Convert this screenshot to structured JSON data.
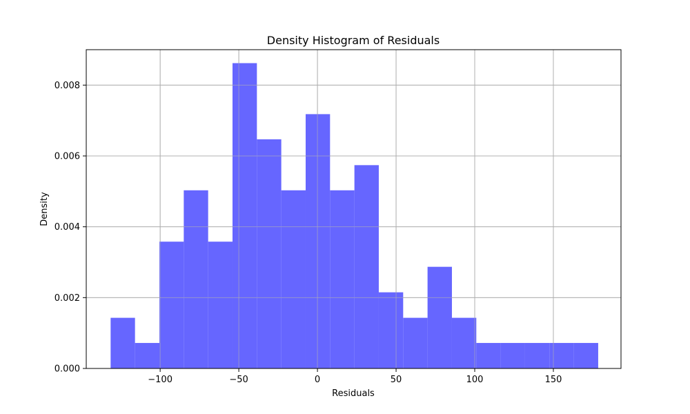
{
  "chart_data": {
    "type": "bar",
    "title": "Density Histogram of Residuals",
    "xlabel": "Residuals",
    "ylabel": "Density",
    "xlim": [
      -147,
      193
    ],
    "ylim": [
      0,
      0.009
    ],
    "x_ticks": [
      -100,
      -50,
      0,
      50,
      100,
      150
    ],
    "x_tick_labels": [
      "−100",
      "−50",
      "0",
      "50",
      "100",
      "150"
    ],
    "y_ticks": [
      0,
      0.002,
      0.004,
      0.006,
      0.008
    ],
    "y_tick_labels": [
      "0.000",
      "0.002",
      "0.004",
      "0.006",
      "0.008"
    ],
    "grid": true,
    "bar_color": "#6666ff",
    "bins": [
      {
        "start": -131.5,
        "end": -116.0,
        "density": 0.00143
      },
      {
        "start": -116.0,
        "end": -100.5,
        "density": 0.00072
      },
      {
        "start": -100.5,
        "end": -85.0,
        "density": 0.00358
      },
      {
        "start": -85.0,
        "end": -69.5,
        "density": 0.00503
      },
      {
        "start": -69.5,
        "end": -54.0,
        "density": 0.00358
      },
      {
        "start": -54.0,
        "end": -38.5,
        "density": 0.00862
      },
      {
        "start": -38.5,
        "end": -23.0,
        "density": 0.00647
      },
      {
        "start": -23.0,
        "end": -7.5,
        "density": 0.00503
      },
      {
        "start": -7.5,
        "end": 8.0,
        "density": 0.00718
      },
      {
        "start": 8.0,
        "end": 23.5,
        "density": 0.00503
      },
      {
        "start": 23.5,
        "end": 39.0,
        "density": 0.00574
      },
      {
        "start": 39.0,
        "end": 54.5,
        "density": 0.00215
      },
      {
        "start": 54.5,
        "end": 70.0,
        "density": 0.00143
      },
      {
        "start": 70.0,
        "end": 85.5,
        "density": 0.00287
      },
      {
        "start": 85.5,
        "end": 101.0,
        "density": 0.00143
      },
      {
        "start": 101.0,
        "end": 116.5,
        "density": 0.00072
      },
      {
        "start": 116.5,
        "end": 132.0,
        "density": 0.00072
      },
      {
        "start": 132.0,
        "end": 147.5,
        "density": 0.00072
      },
      {
        "start": 147.5,
        "end": 163.0,
        "density": 0.00072
      },
      {
        "start": 163.0,
        "end": 178.5,
        "density": 0.00072
      }
    ]
  }
}
